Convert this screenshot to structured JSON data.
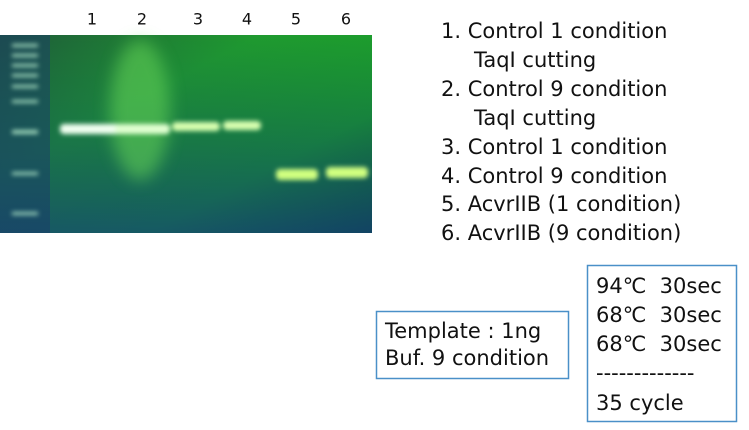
{
  "lanes": [
    "1",
    "2",
    "3",
    "4",
    "5",
    "6"
  ],
  "legend": [
    {
      "label": "1. Control 1 condition",
      "note": "TaqI cutting"
    },
    {
      "label": "2. Control 9 condition",
      "note": "TaqI cutting"
    },
    {
      "label": "3. Control 1 condition"
    },
    {
      "label": "4. Control 9 condition"
    },
    {
      "label": "5. AcvrIIB (1 condition)"
    },
    {
      "label": "6. AcvrIIB (9 condition)"
    }
  ],
  "template_box": [
    "Template : 1ng",
    "Buf. 9 condition"
  ],
  "pcr_box": [
    "94℃  30sec",
    "68℃  30sec",
    "68℃  30sec",
    "-------------",
    "35 cycle"
  ]
}
